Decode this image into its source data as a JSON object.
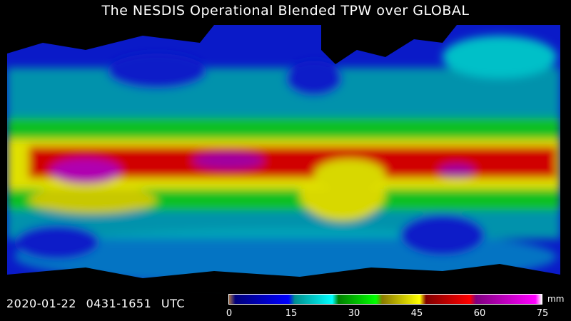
{
  "title": "The NESDIS Operational Blended TPW over GLOBAL",
  "timestamp": "2020-01-22  0431-1651  UTC",
  "colorbar": {
    "unit": "mm",
    "ticks": [
      "0",
      "15",
      "30",
      "45",
      "60",
      "75"
    ],
    "range": [
      0,
      75
    ],
    "colors": [
      "#a0704a",
      "#00007a",
      "#0000ff",
      "#009090",
      "#00ffff",
      "#008000",
      "#00ff00",
      "#8a7a00",
      "#ffff00",
      "#800000",
      "#ff0000",
      "#800080",
      "#ff00ff",
      "#ffffff"
    ]
  }
}
